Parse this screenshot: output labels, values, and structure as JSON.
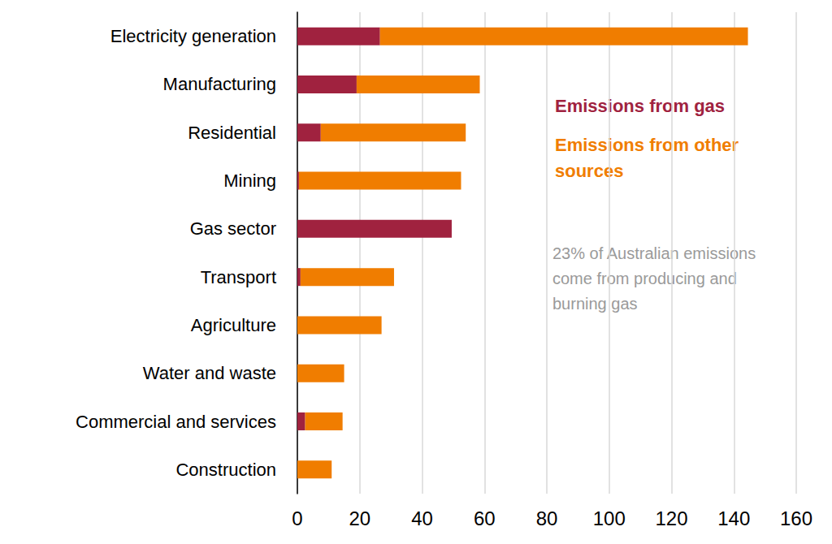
{
  "chart_data": {
    "type": "bar",
    "orientation": "horizontal",
    "stacked": true,
    "categories": [
      "Electricity generation",
      "Manufacturing",
      "Residential",
      "Mining",
      "Gas sector",
      "Transport",
      "Agriculture",
      "Water and waste",
      "Commercial and services",
      "Construction"
    ],
    "series": [
      {
        "name": "Emissions from gas",
        "color": "#a0223f",
        "values": [
          26.5,
          19,
          7.5,
          0.5,
          49.5,
          1,
          0,
          0,
          2.5,
          0
        ]
      },
      {
        "name": "Emissions from other sources",
        "color": "#f07d00",
        "values": [
          118,
          39.5,
          46.5,
          52,
          0,
          30,
          27,
          15,
          12,
          11
        ]
      }
    ],
    "xlim": [
      0,
      160
    ],
    "xticks": [
      0,
      20,
      40,
      60,
      80,
      100,
      120,
      140,
      160
    ],
    "grid": true,
    "legend": "right",
    "annotation": "23% of Australian emissions come from producing and burning gas"
  }
}
